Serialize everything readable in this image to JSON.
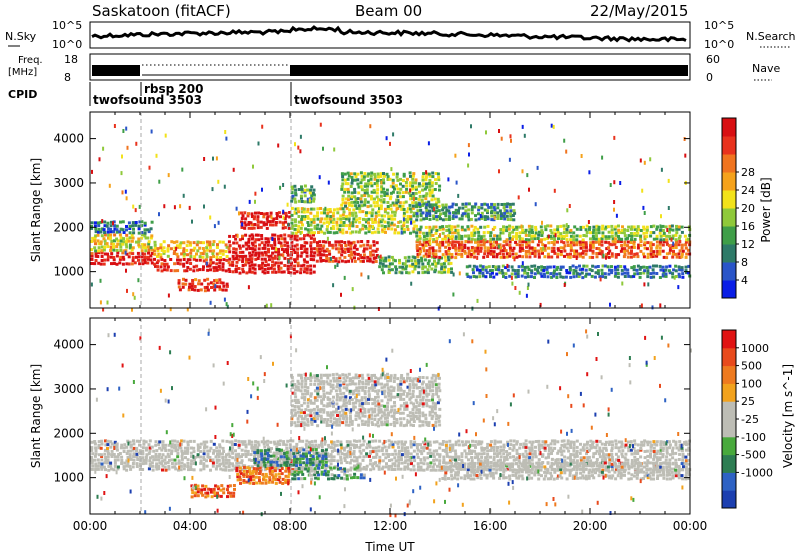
{
  "header": {
    "station": "Saskatoon (fitACF)",
    "beam": "Beam 00",
    "date": "22/May/2015"
  },
  "noise_panel": {
    "left_label": "N.Sky",
    "right_label": "N.Search",
    "tick_top_left": "10^5",
    "tick_bottom_left": "10^0",
    "tick_top_right": "10^5",
    "tick_bottom_right": "10^0"
  },
  "freq_panel": {
    "left_label_line1": "Freq.",
    "left_label_line2": "[MHz]",
    "tick_top_left": "18",
    "tick_bottom_left": "8",
    "tick_top_right": "60",
    "tick_bottom_right": "0",
    "right_label": "Nave"
  },
  "cpid": {
    "label": "CPID",
    "segments": [
      {
        "name": "twofsound 3503",
        "start_hour": 0,
        "end_hour": 2
      },
      {
        "name": "rbsp 200",
        "start_hour": 2,
        "end_hour": 8
      },
      {
        "name": "twofsound 3503",
        "start_hour": 8,
        "end_hour": 24
      }
    ]
  },
  "chart_data": [
    {
      "type": "heatmap",
      "title": "",
      "xlabel": "",
      "ylabel": "Slant Range [km]",
      "xlim": [
        0,
        24
      ],
      "ylim": [
        180,
        4600
      ],
      "y_ticks": [
        "1000",
        "2000",
        "3000",
        "4000"
      ],
      "colorbar": {
        "label": "Power [dB]",
        "ticks": [
          "4",
          "8",
          "12",
          "16",
          "20",
          "24",
          "28"
        ],
        "colors": [
          "#0a1ee6",
          "#2a55c8",
          "#2e7a68",
          "#3f9e48",
          "#8fc93a",
          "#f2e21a",
          "#f5a21b",
          "#f0741f",
          "#e8321d",
          "#d80f12"
        ]
      },
      "bands": [
        {
          "t0": 0.0,
          "t1": 2.5,
          "r0": 1200,
          "r1": 1500,
          "level": 0.95
        },
        {
          "t0": 0.0,
          "t1": 2.5,
          "r0": 1500,
          "r1": 1900,
          "level": 0.55
        },
        {
          "t0": 0.0,
          "t1": 2.5,
          "r0": 1900,
          "r1": 2200,
          "level": 0.2
        },
        {
          "t0": 2.5,
          "t1": 5.5,
          "r0": 1050,
          "r1": 1350,
          "level": 0.95
        },
        {
          "t0": 2.5,
          "t1": 5.5,
          "r0": 1350,
          "r1": 1750,
          "level": 0.6
        },
        {
          "t0": 3.5,
          "t1": 5.5,
          "r0": 600,
          "r1": 900,
          "level": 0.85
        },
        {
          "t0": 5.5,
          "t1": 9.0,
          "r0": 1000,
          "r1": 1900,
          "level": 0.97
        },
        {
          "t0": 6.0,
          "t1": 8.0,
          "r0": 2000,
          "r1": 2400,
          "level": 0.95
        },
        {
          "t0": 9.0,
          "t1": 11.5,
          "r0": 1250,
          "r1": 1750,
          "level": 0.9
        },
        {
          "t0": 8.0,
          "t1": 13.0,
          "r0": 1900,
          "r1": 2500,
          "level": 0.5
        },
        {
          "t0": 8.0,
          "t1": 9.0,
          "r0": 2600,
          "r1": 3000,
          "level": 0.35
        },
        {
          "t0": 10.0,
          "t1": 14.0,
          "r0": 2500,
          "r1": 3300,
          "level": 0.45
        },
        {
          "t0": 11.5,
          "t1": 14.5,
          "r0": 1000,
          "r1": 1400,
          "level": 0.4
        },
        {
          "t0": 13.0,
          "t1": 24.0,
          "r0": 1350,
          "r1": 1750,
          "level": 0.8
        },
        {
          "t0": 13.0,
          "t1": 24.0,
          "r0": 1750,
          "r1": 2100,
          "level": 0.45
        },
        {
          "t0": 15.0,
          "t1": 24.0,
          "r0": 900,
          "r1": 1200,
          "level": 0.25
        },
        {
          "t0": 13.0,
          "t1": 17.0,
          "r0": 2200,
          "r1": 2600,
          "level": 0.3
        }
      ]
    },
    {
      "type": "heatmap",
      "title": "",
      "xlabel": "Time UT",
      "ylabel": "Slant Range [km]",
      "xlim": [
        0,
        24
      ],
      "ylim": [
        180,
        4600
      ],
      "x_ticks": [
        "00:00",
        "04:00",
        "08:00",
        "12:00",
        "16:00",
        "20:00",
        "00:00"
      ],
      "y_ticks": [
        "1000",
        "2000",
        "3000",
        "4000"
      ],
      "colorbar": {
        "label": "Velocity [m s^-1]",
        "ticks": [
          "1000",
          "500",
          "100",
          "25",
          "-25",
          "-100",
          "-500",
          "-1000"
        ],
        "colors": [
          "#1c3fb0",
          "#2e62c4",
          "#2d7d52",
          "#48a93c",
          "#bdbdb5",
          "#bdbdb5",
          "#f2a21d",
          "#ee7a1f",
          "#e84a1c",
          "#e01313"
        ]
      },
      "bands": [
        {
          "t0": 0.0,
          "t1": 24.0,
          "r0": 1200,
          "r1": 1900,
          "level": 0.5
        },
        {
          "t0": 4.0,
          "t1": 5.8,
          "r0": 600,
          "r1": 900,
          "level": 0.85
        },
        {
          "t0": 5.8,
          "t1": 8.0,
          "r0": 900,
          "r1": 1300,
          "level": 0.78
        },
        {
          "t0": 6.5,
          "t1": 9.5,
          "r0": 1300,
          "r1": 1700,
          "level": 0.3
        },
        {
          "t0": 8.0,
          "t1": 11.0,
          "r0": 1000,
          "r1": 1300,
          "level": 0.32
        },
        {
          "t0": 8.0,
          "t1": 14.0,
          "r0": 2200,
          "r1": 3400,
          "level": 0.5
        },
        {
          "t0": 14.0,
          "t1": 24.0,
          "r0": 1000,
          "r1": 1400,
          "level": 0.55
        }
      ]
    }
  ]
}
